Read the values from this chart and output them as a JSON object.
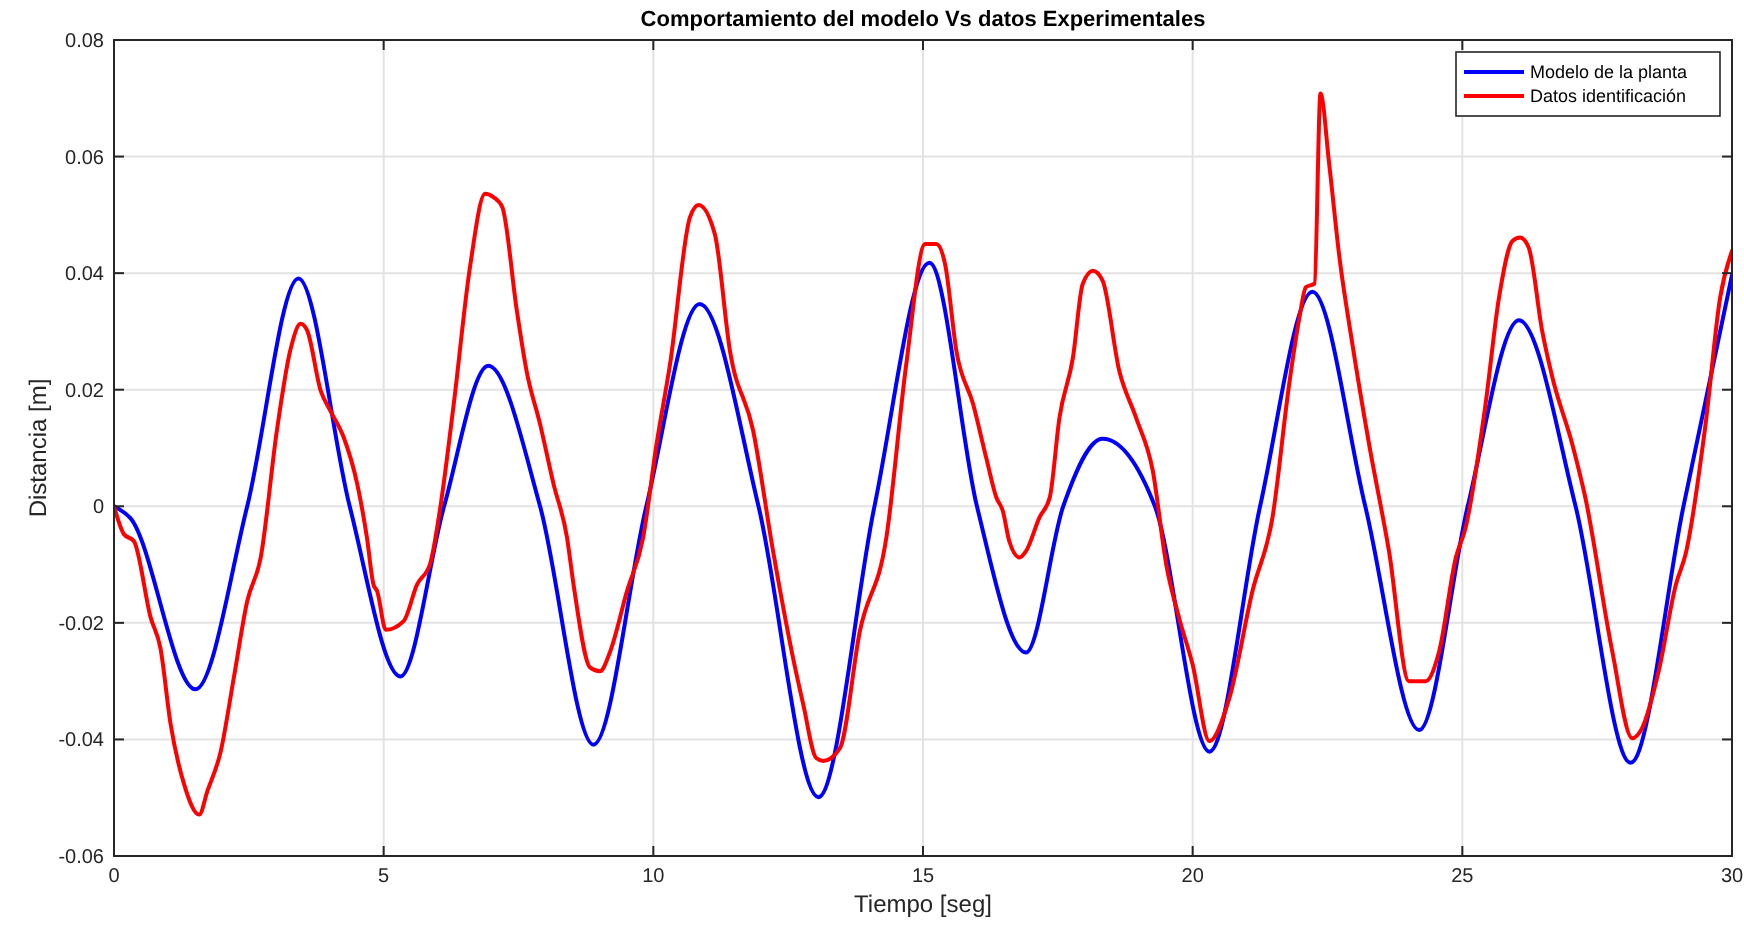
{
  "chart_data": {
    "type": "line",
    "title": "Comportamiento del modelo Vs datos Experimentales",
    "xlabel": "Tiempo [seg]",
    "ylabel": "Distancia [m]",
    "xlim": [
      0,
      30
    ],
    "ylim": [
      -0.06,
      0.08
    ],
    "xticks": [
      0,
      5,
      10,
      15,
      20,
      25,
      30
    ],
    "yticks": [
      -0.06,
      -0.04,
      -0.02,
      0,
      0.02,
      0.04,
      0.06,
      0.08
    ],
    "grid": true,
    "legend": "top right",
    "line_style": "solid",
    "marker": "none",
    "series": [
      {
        "name": "Modelo de la planta",
        "color": "#0000ff",
        "x": [
          0,
          0.3,
          1.51,
          2.47,
          3.42,
          4.37,
          5.31,
          6.12,
          6.94,
          7.9,
          8.89,
          9.87,
          10.86,
          11.95,
          13.06,
          14.1,
          15.12,
          16.0,
          16.91,
          17.6,
          18.33,
          19.3,
          20.31,
          21.25,
          22.22,
          23.2,
          24.2,
          25.1,
          26.05,
          27.1,
          28.12,
          29.1,
          30
        ],
        "values": [
          0,
          -0.002,
          -0.0314,
          0,
          0.0391,
          0,
          -0.0292,
          0,
          0.0241,
          0,
          -0.0409,
          0,
          0.0347,
          0,
          -0.0499,
          0,
          0.0418,
          0,
          -0.0251,
          0,
          0.0116,
          0,
          -0.0421,
          0,
          0.0368,
          0,
          -0.0384,
          0,
          0.0319,
          0,
          -0.044,
          0,
          0.0397
        ]
      },
      {
        "name": "Datos identificación",
        "color": "#ff0000",
        "x": [
          0,
          0.185,
          0.37,
          0.68,
          0.86,
          1.05,
          1.3,
          1.58,
          1.73,
          1.98,
          2.22,
          2.47,
          2.72,
          3.02,
          3.27,
          3.46,
          3.58,
          3.83,
          4.01,
          4.26,
          4.51,
          4.69,
          4.81,
          4.88,
          5.04,
          5.37,
          5.62,
          5.86,
          6.05,
          6.3,
          6.6,
          6.88,
          7.04,
          7.2,
          7.47,
          7.65,
          7.9,
          8.15,
          8.4,
          8.52,
          8.83,
          9.01,
          9.2,
          9.51,
          9.81,
          10.06,
          10.31,
          10.68,
          10.84,
          11.14,
          11.42,
          11.85,
          12.22,
          12.59,
          12.78,
          13.02,
          13.15,
          13.46,
          13.83,
          14.32,
          14.69,
          15.04,
          15.25,
          15.41,
          15.62,
          15.93,
          16.17,
          16.36,
          16.48,
          16.6,
          16.79,
          16.91,
          17.16,
          17.35,
          17.53,
          17.78,
          17.96,
          18.15,
          18.33,
          18.64,
          18.95,
          19.26,
          19.51,
          19.75,
          20.0,
          20.31,
          20.68,
          21.11,
          21.48,
          21.79,
          21.98,
          22.1,
          22.26,
          22.37,
          22.53,
          22.72,
          22.96,
          23.27,
          23.64,
          24.01,
          24.32,
          24.57,
          24.88,
          25.06,
          25.43,
          25.68,
          25.93,
          26.07,
          26.23,
          26.48,
          26.67,
          27.04,
          27.28,
          27.78,
          28.15,
          28.33,
          28.64,
          28.96,
          29.14,
          29.51,
          29.78,
          30
        ],
        "values": [
          0,
          -0.0048,
          -0.006,
          -0.0191,
          -0.0243,
          -0.0374,
          -0.0477,
          -0.0529,
          -0.0489,
          -0.042,
          -0.0295,
          -0.0163,
          -0.0088,
          0.013,
          0.0268,
          0.0313,
          0.0302,
          0.0199,
          0.0164,
          0.0118,
          0.0038,
          -0.0054,
          -0.0134,
          -0.0146,
          -0.0212,
          -0.0197,
          -0.0134,
          -0.0099,
          -0.0002,
          0.0176,
          0.041,
          0.0536,
          0.053,
          0.0513,
          0.0335,
          0.0232,
          0.0141,
          0.0038,
          -0.0054,
          -0.0134,
          -0.0277,
          -0.0283,
          -0.0249,
          -0.0146,
          -0.0054,
          0.0107,
          0.0244,
          0.0496,
          0.0517,
          0.0467,
          0.0267,
          0.013,
          -0.0077,
          -0.026,
          -0.034,
          -0.0432,
          -0.0437,
          -0.0415,
          -0.0214,
          -0.0054,
          0.0244,
          0.045,
          0.045,
          0.0415,
          0.0266,
          0.0175,
          0.0084,
          0.0015,
          -0.0008,
          -0.006,
          -0.0088,
          -0.0077,
          -0.0019,
          0.0015,
          0.0152,
          0.0255,
          0.0381,
          0.0404,
          0.0387,
          0.0232,
          0.0152,
          0.0061,
          -0.01,
          -0.0192,
          -0.0272,
          -0.0403,
          -0.0329,
          -0.0145,
          -0.0019,
          0.021,
          0.0324,
          0.0376,
          0.0382,
          0.0708,
          0.0588,
          0.0428,
          0.0279,
          0.0107,
          -0.0077,
          -0.03,
          -0.03,
          -0.0249,
          -0.0088,
          -0.0037,
          0.0175,
          0.0358,
          0.0455,
          0.0461,
          0.0444,
          0.0301,
          0.0221,
          0.0106,
          0.0015,
          -0.0249,
          -0.0398,
          -0.0381,
          -0.0283,
          -0.0134,
          -0.0082,
          0.0141,
          0.0358,
          0.0438
        ]
      }
    ]
  }
}
